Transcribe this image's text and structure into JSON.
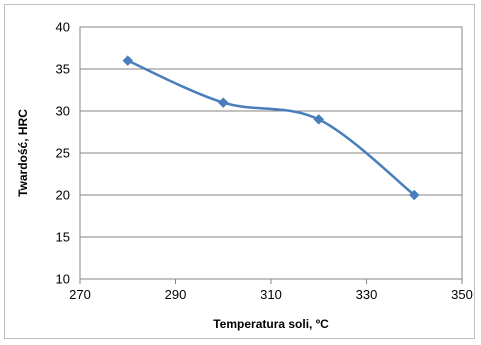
{
  "chart_data": {
    "type": "line",
    "xlabel": "Temperatura soli, ºC",
    "ylabel": "Twardość, HRC",
    "xlim": [
      270,
      350
    ],
    "ylim": [
      10,
      40
    ],
    "x_ticks": [
      270,
      290,
      310,
      330,
      350
    ],
    "y_ticks": [
      10,
      15,
      20,
      25,
      30,
      35,
      40
    ],
    "grid": "horizontal",
    "legend": "none",
    "smoothed": true,
    "marker": "diamond",
    "color": "#4a7ebb",
    "series": [
      {
        "x": [
          280,
          300,
          320,
          340
        ],
        "y": [
          36,
          31,
          29,
          20
        ]
      }
    ]
  }
}
